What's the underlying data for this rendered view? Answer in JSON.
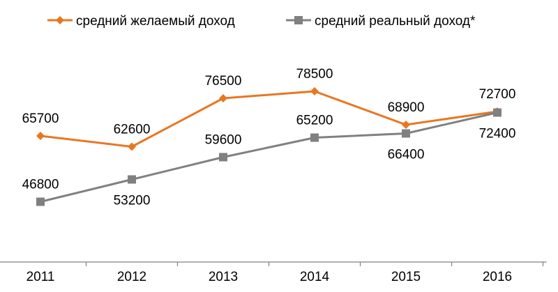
{
  "chart_data": {
    "type": "line",
    "title": "",
    "xlabel": "",
    "ylabel": "",
    "categories": [
      "2011",
      "2012",
      "2013",
      "2014",
      "2015",
      "2016"
    ],
    "ylim": [
      29500,
      92700
    ],
    "grid": false,
    "legend_position": "top-center",
    "series": [
      {
        "name": "средний желаемый доход",
        "values": [
          65700,
          62600,
          76500,
          78500,
          68900,
          72700
        ],
        "labels": [
          "65700",
          "62600",
          "76500",
          "78500",
          "68900",
          "72700"
        ],
        "label_positions": [
          "above",
          "above",
          "above",
          "above",
          "above",
          "above"
        ],
        "color": "#E87722",
        "marker": "diamond"
      },
      {
        "name": "средний реальный доход*",
        "values": [
          46800,
          53200,
          59600,
          65200,
          66400,
          72400
        ],
        "labels": [
          "46800",
          "53200",
          "59600",
          "65200",
          "66400",
          "72400"
        ],
        "label_positions": [
          "above",
          "below",
          "above",
          "above",
          "below",
          "below"
        ],
        "color": "#808080",
        "marker": "square"
      }
    ],
    "axis_color": "#808080"
  }
}
